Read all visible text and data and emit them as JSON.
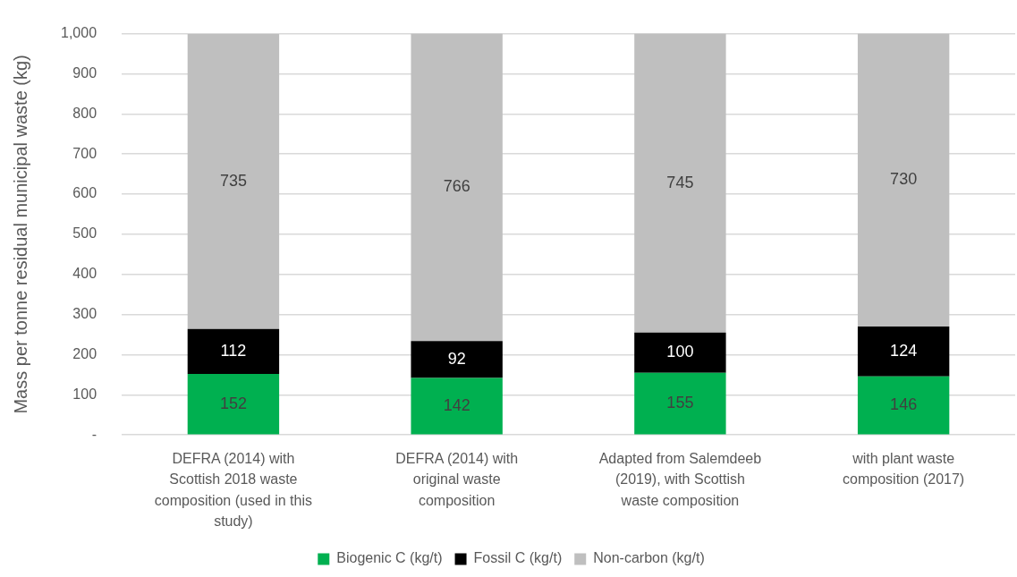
{
  "chart_data": {
    "type": "bar",
    "stacked": true,
    "ylabel": "Mass per tonne residual municipal waste (kg)",
    "categories": [
      "DEFRA (2014) with Scottish 2018 waste composition (used in this study)",
      "DEFRA (2014) with original waste composition",
      "Adapted from Salemdeeb (2019), with Scottish waste composition",
      "with plant waste composition (2017)"
    ],
    "series": [
      {
        "name": "Biogenic C (kg/t)",
        "color": "#00b050",
        "values": [
          152,
          142,
          155,
          146
        ]
      },
      {
        "name": "Fossil C (kg/t)",
        "color": "#000000",
        "values": [
          112,
          92,
          100,
          124
        ]
      },
      {
        "name": "Non-carbon (kg/t)",
        "color": "#bfbfbf",
        "values": [
          735,
          766,
          745,
          730
        ]
      }
    ],
    "ylim": [
      0,
      1000
    ],
    "yticks": [
      {
        "value": 0,
        "label": "-"
      },
      100,
      200,
      300,
      400,
      500,
      600,
      700,
      800,
      900,
      {
        "value": 1000,
        "label": "1,000"
      }
    ],
    "grid": "y",
    "legend": "bottom",
    "data_labels": true
  }
}
